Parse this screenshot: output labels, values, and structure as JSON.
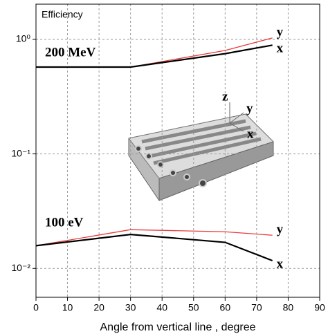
{
  "chart_data": {
    "type": "line",
    "annotations": [
      "Efficiency",
      "200 MeV",
      "100 eV"
    ],
    "inset_labels": [
      "z",
      "y",
      "x"
    ],
    "x_label": "Angle from vertical line , degree",
    "x": [
      0,
      30,
      60,
      75
    ],
    "series": [
      {
        "name": "y",
        "color": "#e8393a",
        "values": [
          0.573,
          0.573,
          0.8,
          1.03
        ]
      },
      {
        "name": "x",
        "color": "#000000",
        "values": [
          0.573,
          0.573,
          0.75,
          0.89
        ]
      },
      {
        "name": "y",
        "color": "#e8393a",
        "values": [
          0.0158,
          0.0218,
          0.0209,
          0.0195
        ]
      },
      {
        "name": "x",
        "color": "#000000",
        "values": [
          0.0158,
          0.0198,
          0.0169,
          0.0117
        ]
      }
    ],
    "xlim": [
      0,
      90
    ],
    "xticks": [
      0,
      10,
      20,
      30,
      40,
      50,
      60,
      70,
      80,
      90
    ],
    "ylim": [
      0.0056,
      2.03
    ],
    "log_y": true,
    "yticks": [
      {
        "value": 1,
        "label": "10⁰"
      },
      {
        "value": 0.1,
        "label": "10⁻¹"
      },
      {
        "value": 0.01,
        "label": "10⁻²"
      }
    ],
    "grid": true
  }
}
